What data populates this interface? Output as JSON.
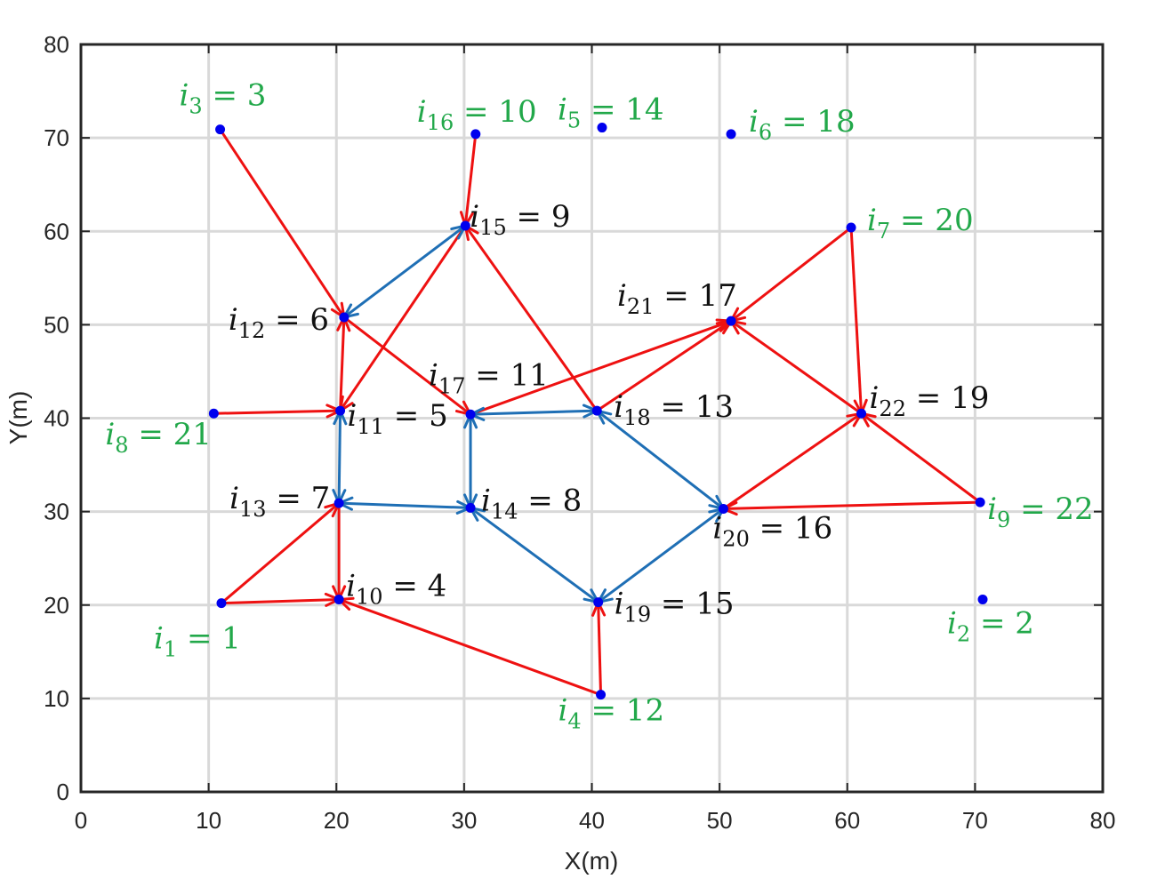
{
  "chart_data": {
    "type": "scatter",
    "title": "",
    "xlabel": "X(m)",
    "ylabel": "Y(m)",
    "xlim": [
      0,
      80
    ],
    "ylim": [
      0,
      80
    ],
    "xticks": [
      0,
      10,
      20,
      30,
      40,
      50,
      60,
      70,
      80
    ],
    "yticks": [
      0,
      10,
      20,
      30,
      40,
      50,
      60,
      70,
      80
    ],
    "grid": true,
    "colors": {
      "node": "#0000ee",
      "red_edge": "#ee1111",
      "blue_edge": "#1f6fb5",
      "green_label": "#22a84a",
      "black_label": "#111111",
      "grid": "#d9d9d9"
    },
    "nodes": [
      {
        "sub": "1",
        "value": "1",
        "x": 11.0,
        "y": 20.2,
        "color": "green"
      },
      {
        "sub": "2",
        "value": "2",
        "x": 70.6,
        "y": 20.6,
        "color": "green"
      },
      {
        "sub": "3",
        "value": "3",
        "x": 10.9,
        "y": 70.9,
        "color": "green"
      },
      {
        "sub": "4",
        "value": "12",
        "x": 40.7,
        "y": 10.4,
        "color": "green"
      },
      {
        "sub": "5",
        "value": "14",
        "x": 40.8,
        "y": 71.1,
        "color": "green"
      },
      {
        "sub": "6",
        "value": "18",
        "x": 50.9,
        "y": 70.4,
        "color": "green"
      },
      {
        "sub": "7",
        "value": "20",
        "x": 60.3,
        "y": 60.4,
        "color": "green"
      },
      {
        "sub": "8",
        "value": "21",
        "x": 10.4,
        "y": 40.5,
        "color": "green"
      },
      {
        "sub": "9",
        "value": "22",
        "x": 70.4,
        "y": 31.0,
        "color": "green"
      },
      {
        "sub": "10",
        "value": "4",
        "x": 20.2,
        "y": 20.6,
        "color": "black"
      },
      {
        "sub": "11",
        "value": "5",
        "x": 20.3,
        "y": 40.8,
        "color": "black"
      },
      {
        "sub": "12",
        "value": "6",
        "x": 20.6,
        "y": 50.8,
        "color": "black"
      },
      {
        "sub": "13",
        "value": "7",
        "x": 20.2,
        "y": 30.9,
        "color": "black"
      },
      {
        "sub": "14",
        "value": "8",
        "x": 30.5,
        "y": 30.4,
        "color": "black"
      },
      {
        "sub": "15",
        "value": "9",
        "x": 30.1,
        "y": 60.6,
        "color": "black"
      },
      {
        "sub": "16",
        "value": "10",
        "x": 30.9,
        "y": 70.4,
        "color": "green"
      },
      {
        "sub": "17",
        "value": "11",
        "x": 30.5,
        "y": 40.4,
        "color": "black"
      },
      {
        "sub": "18",
        "value": "13",
        "x": 40.4,
        "y": 40.8,
        "color": "black"
      },
      {
        "sub": "19",
        "value": "15",
        "x": 40.5,
        "y": 20.3,
        "color": "black"
      },
      {
        "sub": "20",
        "value": "16",
        "x": 50.3,
        "y": 30.3,
        "color": "black"
      },
      {
        "sub": "21",
        "value": "17",
        "x": 50.9,
        "y": 50.4,
        "color": "black"
      },
      {
        "sub": "22",
        "value": "19",
        "x": 61.1,
        "y": 40.5,
        "color": "black"
      }
    ],
    "red_edges": [
      {
        "from": "3",
        "to": "12"
      },
      {
        "from": "16",
        "to": "15"
      },
      {
        "from": "15",
        "to": "11"
      },
      {
        "from": "18",
        "to": "15"
      },
      {
        "from": "12",
        "to": "17"
      },
      {
        "from": "11",
        "to": "12"
      },
      {
        "from": "8",
        "to": "11"
      },
      {
        "from": "1",
        "to": "13"
      },
      {
        "from": "1",
        "to": "10"
      },
      {
        "from": "13",
        "to": "10"
      },
      {
        "from": "4",
        "to": "10"
      },
      {
        "from": "4",
        "to": "19"
      },
      {
        "from": "17",
        "to": "21"
      },
      {
        "from": "18",
        "to": "21"
      },
      {
        "from": "7",
        "to": "21"
      },
      {
        "from": "7",
        "to": "22"
      },
      {
        "from": "22",
        "to": "21"
      },
      {
        "from": "9",
        "to": "22"
      },
      {
        "from": "9",
        "to": "20"
      },
      {
        "from": "20",
        "to": "22"
      }
    ],
    "blue_edges": [
      {
        "a": "15",
        "b": "12"
      },
      {
        "a": "11",
        "b": "13"
      },
      {
        "a": "13",
        "b": "14"
      },
      {
        "a": "14",
        "b": "17"
      },
      {
        "a": "17",
        "b": "18"
      },
      {
        "a": "18",
        "b": "20"
      },
      {
        "a": "14",
        "b": "19"
      },
      {
        "a": "19",
        "b": "20"
      }
    ]
  }
}
